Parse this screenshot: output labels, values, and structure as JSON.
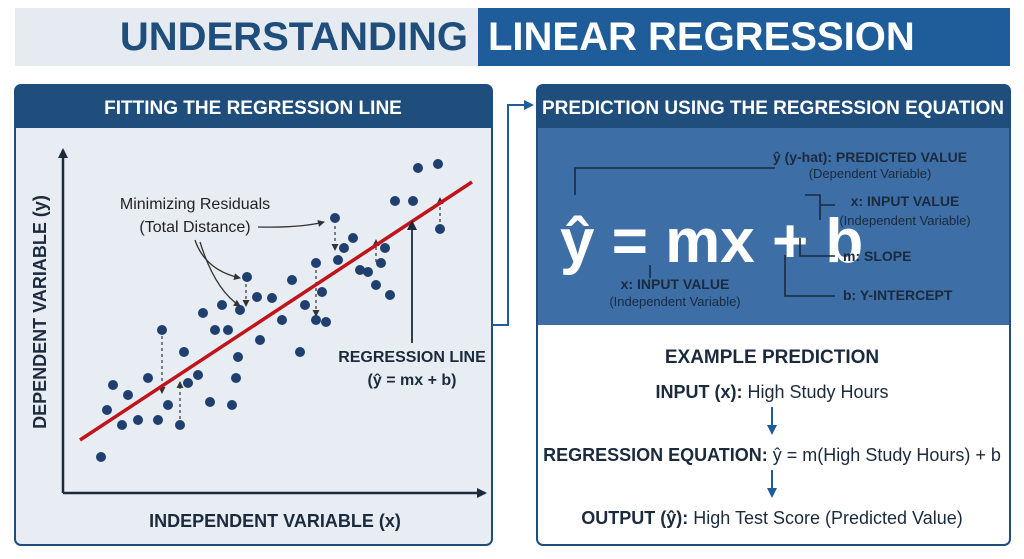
{
  "title": {
    "part1": "UNDERSTANDING",
    "part2": "LINEAR REGRESSION"
  },
  "left_panel": {
    "header": "FITTING THE REGRESSION LINE",
    "y_axis_label": "DEPENDENT VARIABLE (y)",
    "x_axis_label": "INDEPENDENT VARIABLE (x)",
    "residuals_note": [
      "Minimizing Residuals",
      "(Total Distance)"
    ],
    "line_label": [
      "REGRESSION LINE",
      "(ŷ = mx + b)"
    ]
  },
  "right_panel": {
    "header": "PREDICTION USING THE REGRESSION EQUATION",
    "equation": "ŷ = mx + b",
    "annotations": {
      "y_hat": {
        "label": "ŷ (y-hat): PREDICTED VALUE",
        "sub": "(Dependent Variable)"
      },
      "x_right": {
        "label": "x: INPUT VALUE",
        "sub": "(Independent Variable)"
      },
      "m": "m: SLOPE",
      "b": "b: Y-INTERCEPT",
      "x_bottom": {
        "label": "x: INPUT VALUE",
        "sub": "(Independent Variable)"
      }
    },
    "example": {
      "title": "EXAMPLE PREDICTION",
      "steps": [
        {
          "label": "INPUT (x):",
          "text": "High Study Hours"
        },
        {
          "label": "REGRESSION EQUATION:",
          "text": "ŷ = m(High Study Hours) + b"
        },
        {
          "label": "OUTPUT (ŷ):",
          "text": "High Test Score (Predicted Value)"
        }
      ]
    }
  }
}
